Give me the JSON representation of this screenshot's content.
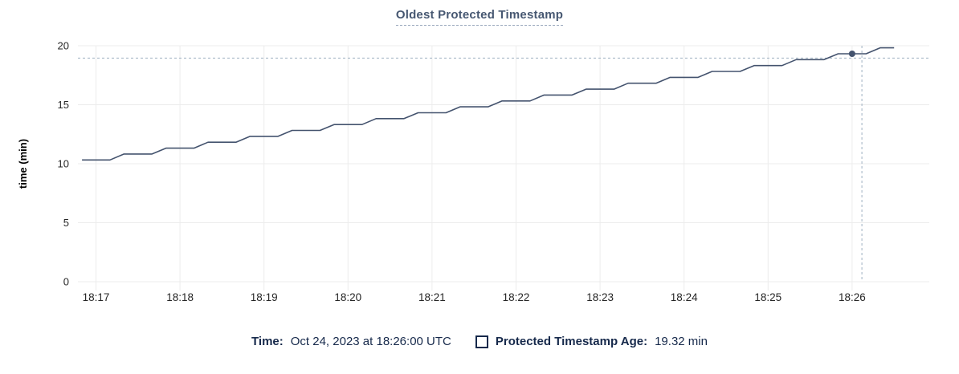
{
  "title": "Oldest Protected Timestamp",
  "tooltip_legend": {
    "time_label": "Time:",
    "time_value": "Oct 24, 2023 at 18:26:00 UTC",
    "series_label": "Protected Timestamp Age:",
    "series_value": "19.32 min",
    "swatch_style": "outlined-square"
  },
  "colors": {
    "line": "#44536e",
    "dot": "#44536e",
    "title": "#475872",
    "grid": "#ececec",
    "crosshair": "#9fb0c1",
    "axis_text": "#262626",
    "axis_label_text": "#000000",
    "legend_text": "#16294b",
    "background": "#ffffff"
  },
  "chart_data": {
    "type": "line",
    "title": "Oldest Protected Timestamp",
    "xlabel": "",
    "ylabel": "time (min)",
    "ylim": [
      0,
      20
    ],
    "yticks": [
      0,
      5,
      10,
      15,
      20
    ],
    "xticks": [
      "18:17",
      "18:18",
      "18:19",
      "18:20",
      "18:21",
      "18:22",
      "18:23",
      "18:24",
      "18:25",
      "18:26"
    ],
    "x_visible_range": [
      "18:16:47",
      "18:26:55"
    ],
    "grid": true,
    "legend_position": "bottom",
    "series": [
      {
        "name": "Protected Timestamp Age",
        "unit": "min",
        "times": [
          "18:16:50",
          "18:17:00",
          "18:17:10",
          "18:17:20",
          "18:17:30",
          "18:17:40",
          "18:17:50",
          "18:18:00",
          "18:18:10",
          "18:18:20",
          "18:18:30",
          "18:18:40",
          "18:18:50",
          "18:19:00",
          "18:19:10",
          "18:19:20",
          "18:19:30",
          "18:19:40",
          "18:19:50",
          "18:20:00",
          "18:20:10",
          "18:20:20",
          "18:20:30",
          "18:20:40",
          "18:20:50",
          "18:21:00",
          "18:21:10",
          "18:21:20",
          "18:21:30",
          "18:21:40",
          "18:21:50",
          "18:22:00",
          "18:22:10",
          "18:22:20",
          "18:22:30",
          "18:22:40",
          "18:22:50",
          "18:23:00",
          "18:23:10",
          "18:23:20",
          "18:23:30",
          "18:23:40",
          "18:23:50",
          "18:24:00",
          "18:24:10",
          "18:24:20",
          "18:24:30",
          "18:24:40",
          "18:24:50",
          "18:25:00",
          "18:25:10",
          "18:25:20",
          "18:25:30",
          "18:25:40",
          "18:25:50",
          "18:26:00",
          "18:26:10",
          "18:26:20",
          "18:26:30"
        ],
        "values": [
          10.32,
          10.32,
          10.32,
          10.82,
          10.82,
          10.82,
          11.32,
          11.32,
          11.32,
          11.82,
          11.82,
          11.82,
          12.32,
          12.32,
          12.32,
          12.82,
          12.82,
          12.82,
          13.32,
          13.32,
          13.32,
          13.82,
          13.82,
          13.82,
          14.32,
          14.32,
          14.32,
          14.82,
          14.82,
          14.82,
          15.32,
          15.32,
          15.32,
          15.82,
          15.82,
          15.82,
          16.32,
          16.32,
          16.32,
          16.82,
          16.82,
          16.82,
          17.32,
          17.32,
          17.32,
          17.82,
          17.82,
          17.82,
          18.32,
          18.32,
          18.32,
          18.82,
          18.82,
          18.82,
          19.32,
          19.32,
          19.32,
          19.82,
          19.82
        ]
      }
    ],
    "hover": {
      "highlighted_point_time": "18:26:00",
      "highlighted_point_value": 19.32,
      "crosshair_time": "18:26:07",
      "crosshair_value": 18.95
    }
  }
}
